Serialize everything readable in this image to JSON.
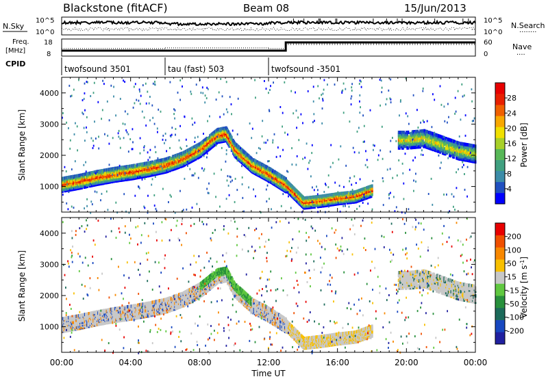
{
  "header": {
    "station": "Blackstone (fitACF)",
    "beam": "Beam 08",
    "date": "15/Jun/2013"
  },
  "noise_panel": {
    "left_label": "N.Sky",
    "right_label": "N.Search",
    "right_legend_line": "........",
    "tick_top": "10^5",
    "tick_bottom": "10^0"
  },
  "freq_panel": {
    "left_label_1": "Freq.",
    "left_label_2": "[MHz]",
    "left_tick_top": "18",
    "left_tick_bottom": "8",
    "right_label": "Nave",
    "right_legend_line": "....",
    "right_tick_top": "60",
    "right_tick_bottom": "0"
  },
  "cpid": {
    "label": "CPID",
    "segments": [
      {
        "label": "twofsound 3501",
        "start_hour": 0,
        "end_hour": 6
      },
      {
        "label": "tau (fast) 503",
        "start_hour": 6,
        "end_hour": 12
      },
      {
        "label": "twofsound -3501",
        "start_hour": 12,
        "end_hour": 24
      }
    ]
  },
  "x_axis": {
    "label": "Time UT",
    "ticks": [
      "00:00",
      "04:00",
      "08:00",
      "12:00",
      "16:00",
      "20:00",
      "00:00"
    ],
    "tick_hours": [
      0,
      4,
      8,
      12,
      16,
      20,
      24
    ],
    "range_hours": [
      0,
      24
    ]
  },
  "chart_data": [
    {
      "type": "heatmap",
      "name": "power",
      "ylabel": "Slant Range [km]",
      "yticks": [
        "1000",
        "2000",
        "3000",
        "4000"
      ],
      "ytick_values": [
        1000,
        2000,
        3000,
        4000
      ],
      "ylim": [
        180,
        4500
      ],
      "colorbar": {
        "label": "Power [dB]",
        "ticks": [
          "28",
          "24",
          "20",
          "16",
          "12",
          "8",
          "4"
        ],
        "tick_values": [
          28,
          24,
          20,
          16,
          12,
          8,
          4
        ],
        "range": [
          0,
          32
        ],
        "colors": [
          "#0000ff",
          "#2050c0",
          "#3c8ca8",
          "#40a080",
          "#58b858",
          "#a8d028",
          "#f0e000",
          "#f8a800",
          "#f06000",
          "#e82000",
          "#e80000"
        ]
      },
      "main_trace": [
        {
          "t": 0.0,
          "r": 1080
        },
        {
          "t": 1.0,
          "r": 1180
        },
        {
          "t": 2.0,
          "r": 1300
        },
        {
          "t": 3.0,
          "r": 1400
        },
        {
          "t": 4.0,
          "r": 1480
        },
        {
          "t": 5.0,
          "r": 1580
        },
        {
          "t": 6.0,
          "r": 1700
        },
        {
          "t": 7.0,
          "r": 1900
        },
        {
          "t": 8.0,
          "r": 2200
        },
        {
          "t": 9.0,
          "r": 2650
        },
        {
          "t": 9.5,
          "r": 2700
        },
        {
          "t": 10.0,
          "r": 2200
        },
        {
          "t": 11.0,
          "r": 1700
        },
        {
          "t": 12.0,
          "r": 1400
        },
        {
          "t": 13.0,
          "r": 1050
        },
        {
          "t": 14.0,
          "r": 500
        },
        {
          "t": 15.0,
          "r": 560
        },
        {
          "t": 16.0,
          "r": 640
        },
        {
          "t": 17.0,
          "r": 700
        },
        {
          "t": 18.0,
          "r": 900
        }
      ],
      "evening_trace": [
        {
          "t": 20.0,
          "r": 2500
        },
        {
          "t": 21.0,
          "r": 2550
        },
        {
          "t": 22.0,
          "r": 2350
        },
        {
          "t": 23.0,
          "r": 2150
        },
        {
          "t": 24.0,
          "r": 2050
        }
      ]
    },
    {
      "type": "heatmap",
      "name": "velocity",
      "ylabel": "Slant Range [km]",
      "yticks": [
        "1000",
        "2000",
        "3000",
        "4000"
      ],
      "ytick_values": [
        1000,
        2000,
        3000,
        4000
      ],
      "ylim": [
        180,
        4500
      ],
      "colorbar": {
        "label": "Velocity",
        "unit": "[m s",
        "unit_exp": "-1",
        "unit_close": "]",
        "ticks": [
          "200",
          "100",
          "50",
          "15",
          "-15",
          "-50",
          "-100",
          "-200"
        ],
        "tick_values": [
          200,
          100,
          50,
          15,
          -15,
          -50,
          -100,
          -200
        ],
        "colors": [
          "#2020a0",
          "#1848c0",
          "#1c6a5a",
          "#28903c",
          "#60c840",
          "#c8c8c8",
          "#f8c000",
          "#f88800",
          "#f05000",
          "#e80000"
        ]
      }
    }
  ]
}
